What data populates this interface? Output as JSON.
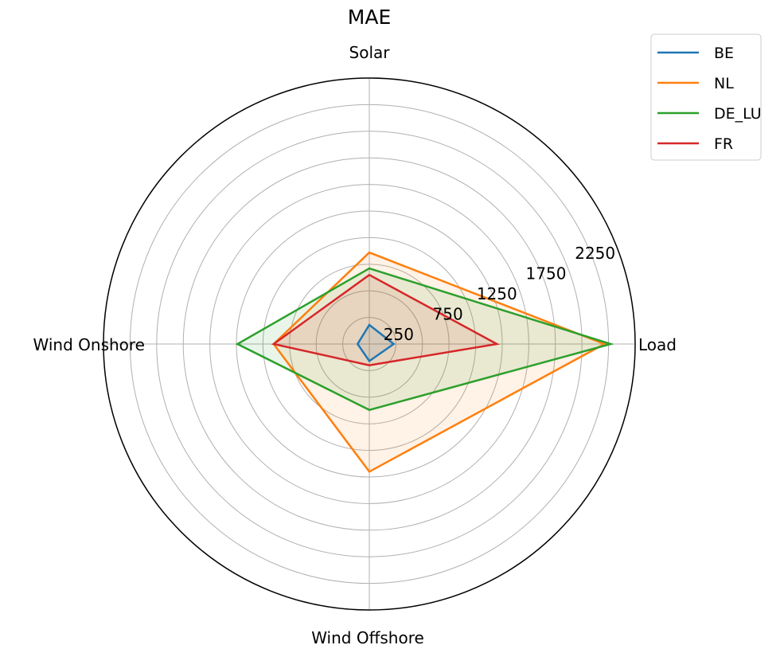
{
  "chart_data": {
    "type": "radar",
    "title": "MAE",
    "categories": [
      "Solar",
      "Load",
      "Wind Offshore",
      "Wind Onshore"
    ],
    "rlim": [
      0,
      2500
    ],
    "rticks": [
      250,
      500,
      750,
      1000,
      1250,
      1500,
      1750,
      2000,
      2250,
      2500
    ],
    "rtick_labels": [
      "250",
      "750",
      "1250",
      "1750",
      "2250"
    ],
    "rtick_label_values": [
      250,
      750,
      1250,
      1750,
      2250
    ],
    "grid": true,
    "legend_position": "top-right",
    "series": [
      {
        "name": "BE",
        "color": "#1f77b4",
        "values": [
          180,
          230,
          160,
          110
        ]
      },
      {
        "name": "NL",
        "color": "#ff7f0e",
        "values": [
          860,
          2210,
          1200,
          900
        ]
      },
      {
        "name": "DE_LU",
        "color": "#2ca02c",
        "values": [
          710,
          2270,
          620,
          1240
        ]
      },
      {
        "name": "FR",
        "color": "#d62728",
        "values": [
          650,
          1200,
          200,
          900
        ]
      }
    ]
  }
}
